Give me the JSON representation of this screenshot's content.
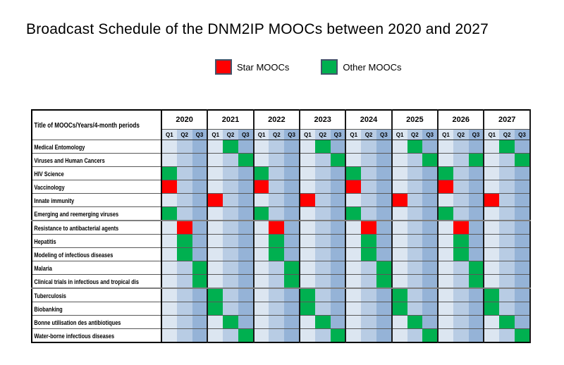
{
  "page": {
    "background": "#ffffff"
  },
  "chart_data": {
    "type": "heatmap",
    "title": "Broadcast Schedule of the DNM2IP MOOCs between 2020 and 2027",
    "corner_label": "Title of MOOCs/Years/4-month periods",
    "years": [
      "2020",
      "2021",
      "2022",
      "2023",
      "2024",
      "2025",
      "2026",
      "2027"
    ],
    "quarters": [
      "Q1",
      "Q2",
      "Q3"
    ],
    "legend": [
      {
        "key": "star",
        "label": "Star MOOCs",
        "color": "#ff0000"
      },
      {
        "key": "other",
        "label": "Other MOOCs",
        "color": "#00b050"
      }
    ],
    "quarter_backgrounds": {
      "Q1": "#dce6f1",
      "Q2": "#b8cce4",
      "Q3": "#95b3d7"
    },
    "group_separator_after_rows": [
      6,
      11
    ],
    "rows": [
      {
        "label": "Medical Entomology",
        "type": "other",
        "broadcasts": [
          "2021-Q2",
          "2023-Q2",
          "2025-Q2",
          "2027-Q2"
        ]
      },
      {
        "label": "Viruses and Human Cancers",
        "type": "other",
        "broadcasts": [
          "2021-Q3",
          "2023-Q3",
          "2025-Q3",
          "2026-Q3",
          "2027-Q3"
        ]
      },
      {
        "label": "HIV Science",
        "type": "other",
        "broadcasts": [
          "2020-Q1",
          "2022-Q1",
          "2024-Q1",
          "2026-Q1"
        ]
      },
      {
        "label": "Vaccinology",
        "type": "star",
        "broadcasts": [
          "2020-Q1",
          "2022-Q1",
          "2024-Q1",
          "2026-Q1"
        ]
      },
      {
        "label": "Innate immunity",
        "type": "star",
        "broadcasts": [
          "2021-Q1",
          "2023-Q1",
          "2025-Q1",
          "2027-Q1"
        ]
      },
      {
        "label": "Emerging and reemerging viruses",
        "type": "other",
        "broadcasts": [
          "2020-Q1",
          "2022-Q1",
          "2024-Q1",
          "2026-Q1"
        ]
      },
      {
        "label": "Resistance to antibacterial agents",
        "type": "star",
        "broadcasts": [
          "2020-Q2",
          "2022-Q2",
          "2024-Q2",
          "2026-Q2"
        ]
      },
      {
        "label": "Hepatitis",
        "type": "other",
        "broadcasts": [
          "2020-Q2",
          "2022-Q2",
          "2024-Q2",
          "2026-Q2"
        ]
      },
      {
        "label": "Modeling of infectious diseases",
        "type": "other",
        "broadcasts": [
          "2020-Q2",
          "2022-Q2",
          "2024-Q2",
          "2026-Q2"
        ]
      },
      {
        "label": "Malaria",
        "type": "other",
        "broadcasts": [
          "2020-Q3",
          "2022-Q3",
          "2024-Q3",
          "2026-Q3"
        ]
      },
      {
        "label": "Clinical trials in infectious and tropical dis",
        "type": "other",
        "broadcasts": [
          "2020-Q3",
          "2022-Q3",
          "2024-Q3",
          "2026-Q3"
        ]
      },
      {
        "label": "Tuberculosis",
        "type": "other",
        "broadcasts": [
          "2021-Q1",
          "2023-Q1",
          "2025-Q1",
          "2027-Q1"
        ]
      },
      {
        "label": "Biobanking",
        "type": "other",
        "broadcasts": [
          "2021-Q1",
          "2023-Q1",
          "2025-Q1",
          "2027-Q1"
        ]
      },
      {
        "label": "Bonne utilisation des antibiotiques",
        "type": "other",
        "broadcasts": [
          "2021-Q2",
          "2023-Q2",
          "2025-Q2",
          "2027-Q2"
        ]
      },
      {
        "label": "Water-borne infectious diseases",
        "type": "other",
        "broadcasts": [
          "2021-Q3",
          "2023-Q3",
          "2025-Q3",
          "2027-Q3"
        ]
      }
    ]
  }
}
